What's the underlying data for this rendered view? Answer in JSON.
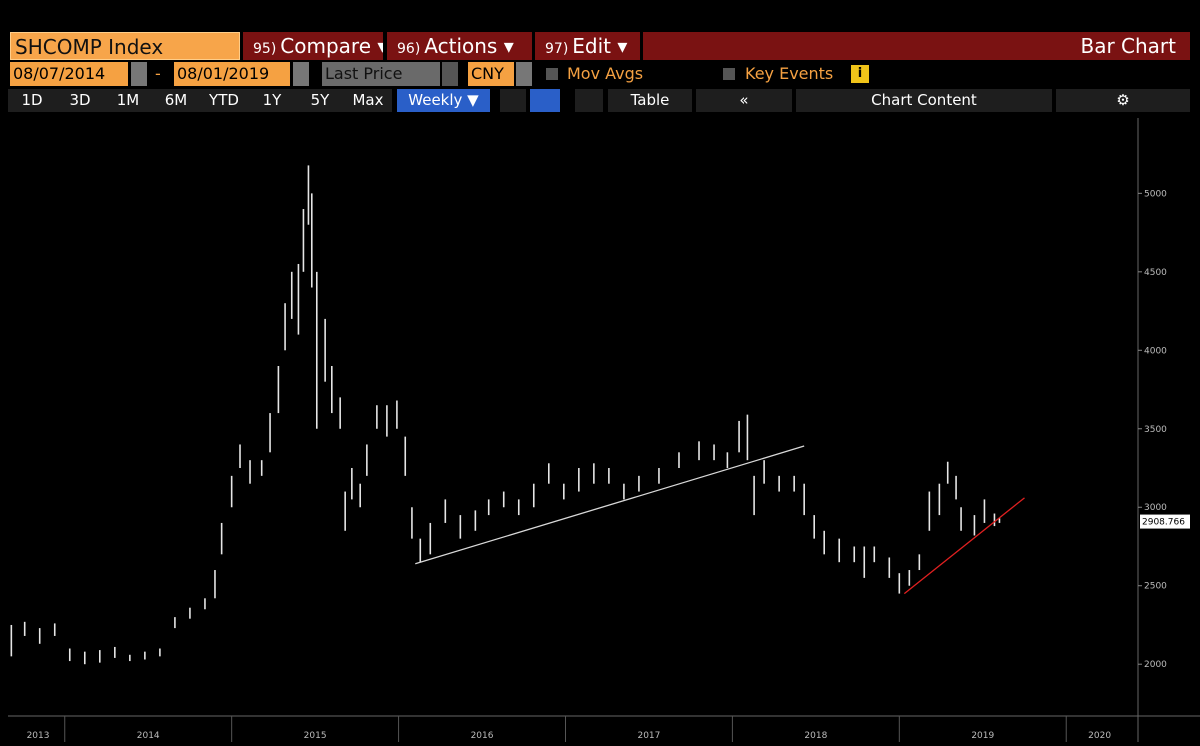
{
  "header": {
    "security": "SHCOMP Index",
    "tabs": [
      {
        "num": "95)",
        "label": "Compare ▾"
      },
      {
        "num": "96)",
        "label": "Actions ▾"
      },
      {
        "num": "97)",
        "label": "Edit ▾"
      }
    ],
    "view": "Bar Chart"
  },
  "controls": {
    "start_date": "08/07/2014",
    "separator": "-",
    "end_date": "08/01/2019",
    "field": "Last Price",
    "currency": "CNY",
    "mov_avgs": "Mov Avgs",
    "key_events": "Key Events",
    "info": "i"
  },
  "toolbar": {
    "periods": [
      "1D",
      "3D",
      "1M",
      "6M",
      "YTD",
      "1Y",
      "5Y",
      "Max"
    ],
    "frequency": "Weekly ▼",
    "table": "Table",
    "collapse": "«",
    "content": "Chart Content"
  },
  "chart_data": {
    "type": "hilo",
    "xlim": [
      2013.66,
      2020.43
    ],
    "xticks": [
      {
        "value": 2013.84,
        "label": "2013"
      },
      {
        "value": 2014.5,
        "label": "2014"
      },
      {
        "value": 2015.5,
        "label": "2015"
      },
      {
        "value": 2016.5,
        "label": "2016"
      },
      {
        "value": 2017.5,
        "label": "2017"
      },
      {
        "value": 2018.5,
        "label": "2018"
      },
      {
        "value": 2019.5,
        "label": "2019"
      },
      {
        "value": 2020.2,
        "label": "2020"
      }
    ],
    "ylim": [
      1670,
      5480
    ],
    "yticks": [
      2000,
      2500,
      3000,
      3500,
      4000,
      4500,
      5000
    ],
    "series": [
      {
        "color": "#e6e6e6",
        "x": [
          2013.68,
          2013.76,
          2013.85,
          2013.94,
          2014.03,
          2014.12,
          2014.21,
          2014.3,
          2014.39,
          2014.48,
          2014.57,
          2014.66,
          2014.75,
          2014.84,
          2014.9,
          2014.94,
          2015.0,
          2015.05,
          2015.11,
          2015.18,
          2015.23,
          2015.28,
          2015.32,
          2015.36,
          2015.4,
          2015.43,
          2015.46,
          2015.48,
          2015.51,
          2015.56,
          2015.6,
          2015.65,
          2015.68,
          2015.72,
          2015.77,
          2015.81,
          2015.87,
          2015.93,
          2015.99,
          2016.04,
          2016.08,
          2016.13,
          2016.19,
          2016.28,
          2016.37,
          2016.46,
          2016.54,
          2016.63,
          2016.72,
          2016.81,
          2016.9,
          2016.99,
          2017.08,
          2017.17,
          2017.26,
          2017.35,
          2017.44,
          2017.56,
          2017.68,
          2017.8,
          2017.89,
          2017.97,
          2018.04,
          2018.09,
          2018.13,
          2018.19,
          2018.28,
          2018.37,
          2018.43,
          2018.49,
          2018.55,
          2018.64,
          2018.73,
          2018.79,
          2018.85,
          2018.94,
          2019.0,
          2019.06,
          2019.12,
          2019.18,
          2019.24,
          2019.29,
          2019.34,
          2019.37,
          2019.45,
          2019.51,
          2019.57,
          2019.6
        ],
        "high": [
          2250,
          2270,
          2230,
          2260,
          2100,
          2080,
          2090,
          2110,
          2060,
          2080,
          2100,
          2300,
          2360,
          2420,
          2600,
          2900,
          3200,
          3400,
          3300,
          3300,
          3600,
          3900,
          4300,
          4500,
          4550,
          4900,
          5178,
          5000,
          4500,
          4200,
          3900,
          3700,
          3100,
          3250,
          3150,
          3400,
          3650,
          3650,
          3680,
          3450,
          3000,
          2800,
          2900,
          3050,
          2950,
          2980,
          3050,
          3100,
          3050,
          3150,
          3280,
          3150,
          3250,
          3280,
          3250,
          3150,
          3200,
          3250,
          3350,
          3420,
          3400,
          3350,
          3550,
          3590,
          3200,
          3300,
          3200,
          3200,
          3150,
          2950,
          2850,
          2800,
          2750,
          2750,
          2750,
          2680,
          2580,
          2600,
          2700,
          3100,
          3150,
          3290,
          3200,
          3000,
          2950,
          3050,
          2960,
          2930
        ],
        "low": [
          2050,
          2180,
          2130,
          2180,
          2020,
          2000,
          2010,
          2040,
          2020,
          2030,
          2050,
          2230,
          2290,
          2350,
          2420,
          2700,
          3000,
          3250,
          3150,
          3200,
          3350,
          3600,
          4000,
          4200,
          4100,
          4500,
          4800,
          4400,
          3500,
          3800,
          3600,
          3500,
          2850,
          3050,
          3000,
          3200,
          3500,
          3450,
          3500,
          3200,
          2800,
          2650,
          2700,
          2900,
          2800,
          2850,
          2950,
          3000,
          2950,
          3000,
          3150,
          3050,
          3100,
          3150,
          3150,
          3050,
          3100,
          3150,
          3250,
          3300,
          3300,
          3250,
          3350,
          3300,
          2950,
          3150,
          3100,
          3100,
          2950,
          2800,
          2700,
          2650,
          2650,
          2550,
          2650,
          2550,
          2450,
          2500,
          2600,
          2850,
          2950,
          3150,
          3050,
          2850,
          2820,
          2900,
          2880,
          2900
        ]
      }
    ],
    "trendlines": [
      {
        "color": "#d8d8d8",
        "x": [
          2016.1,
          2018.43
        ],
        "y": [
          2640,
          3390
        ]
      },
      {
        "color": "#e02020",
        "x": [
          2019.03,
          2019.75
        ],
        "y": [
          2450,
          3060
        ]
      }
    ],
    "last_price": 2908.766
  }
}
